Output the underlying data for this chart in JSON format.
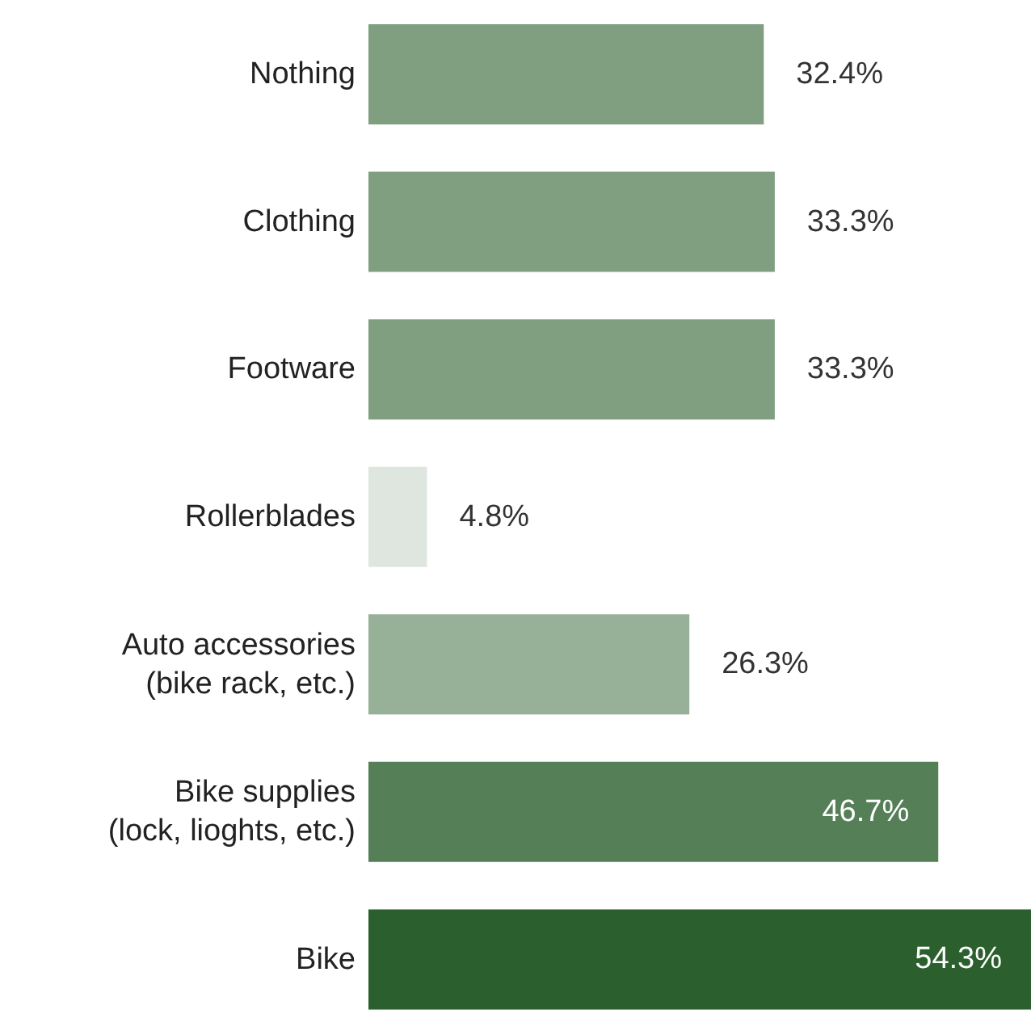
{
  "chart_data": {
    "type": "bar",
    "orientation": "horizontal",
    "categories": [
      "Nothing",
      "Clothing",
      "Footware",
      "Rollerblades",
      "Auto accessories\n(bike rack, etc.)",
      "Bike supplies\n(lock, lioghts, etc.)",
      "Bike"
    ],
    "values": [
      32.4,
      33.3,
      33.3,
      4.8,
      26.3,
      46.7,
      54.3
    ],
    "colors": [
      "#7f9f80",
      "#7f9f80",
      "#7f9f80",
      "#dfe6df",
      "#97b098",
      "#557f57",
      "#2c5f2e"
    ],
    "value_labels": [
      "32.4%",
      "33.3%",
      "33.3%",
      "4.8%",
      "26.3%",
      "46.7%",
      "54.3%"
    ],
    "grid": false,
    "legend": false
  }
}
